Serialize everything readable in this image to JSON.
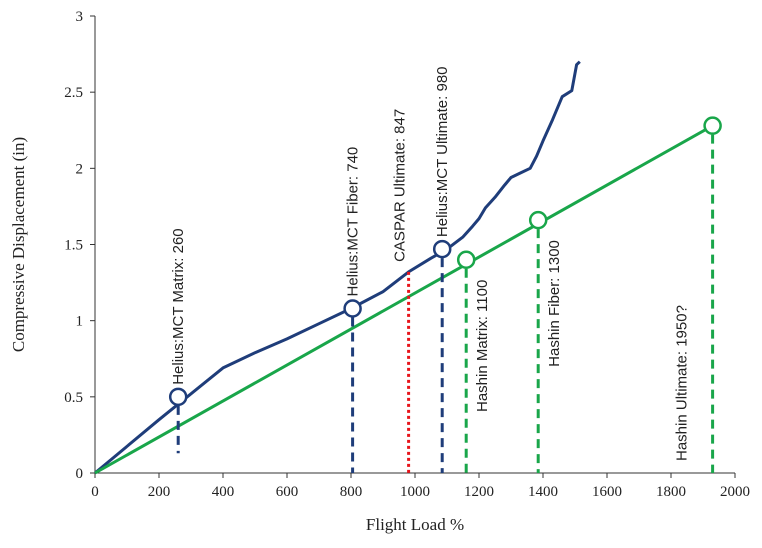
{
  "chart_data": {
    "type": "line",
    "xlabel": "Flight Load %",
    "ylabel": "Compressive Displacement (in)",
    "xlim": [
      0,
      2000
    ],
    "ylim": [
      0,
      3
    ],
    "x_ticks": [
      "0",
      "200",
      "400",
      "600",
      "800",
      "1000",
      "1200",
      "1400",
      "1600",
      "1800",
      "2000"
    ],
    "y_ticks": [
      "0",
      "0.5",
      "1",
      "1.5",
      "2",
      "2.5",
      "3"
    ],
    "grid": false,
    "legend": "none",
    "series": [
      {
        "color": "#1f3d7a",
        "x": [
          0,
          200,
          400,
          500,
          600,
          700,
          800,
          900,
          980,
          1050,
          1100,
          1150,
          1180,
          1200,
          1220,
          1250,
          1280,
          1300,
          1330,
          1360,
          1380,
          1400,
          1430,
          1460,
          1490,
          1505,
          1515
        ],
        "y": [
          0,
          0.35,
          0.69,
          0.79,
          0.88,
          0.98,
          1.08,
          1.19,
          1.32,
          1.41,
          1.47,
          1.55,
          1.62,
          1.67,
          1.74,
          1.81,
          1.89,
          1.94,
          1.97,
          2.0,
          2.08,
          2.18,
          2.32,
          2.47,
          2.51,
          2.68,
          2.7
        ]
      },
      {
        "color": "#19a64a",
        "x": [
          0,
          1930
        ],
        "y": [
          0,
          2.28
        ]
      }
    ],
    "markers": [
      {
        "label": "Helius:MCT Matrix: 260",
        "x": 260,
        "y": 0.5,
        "drop_to": 0.13,
        "color": "#1f3d7a",
        "line": "dashed"
      },
      {
        "label": "Helius:MCT Fiber: 740",
        "x": 805,
        "y": 1.08,
        "drop_to": 0.0,
        "color": "#1f3d7a",
        "line": "dashed"
      },
      {
        "label": "CASPAR Ultimate: 847",
        "x": 980,
        "y": 1.32,
        "drop_to": 0.0,
        "color": "#e8141b",
        "line": "dotted",
        "no_circle": true
      },
      {
        "label": "Helius:MCT Ultimate: 980",
        "x": 1085,
        "y": 1.47,
        "drop_to": 0.0,
        "color": "#1f3d7a",
        "line": "dashed"
      },
      {
        "label": "Hashin Matrix: 1100",
        "x": 1160,
        "y": 1.4,
        "drop_to": 0.0,
        "color": "#19a64a",
        "line": "dashed"
      },
      {
        "label": "Hashin Fiber: 1300",
        "x": 1385,
        "y": 1.66,
        "drop_to": 0.0,
        "color": "#19a64a",
        "line": "dashed"
      },
      {
        "label": "Hashin Ultimate: 1950?",
        "x": 1930,
        "y": 2.28,
        "drop_to": 0.0,
        "color": "#19a64a",
        "line": "dashed"
      }
    ],
    "colors": {
      "axis": "#333333"
    }
  }
}
